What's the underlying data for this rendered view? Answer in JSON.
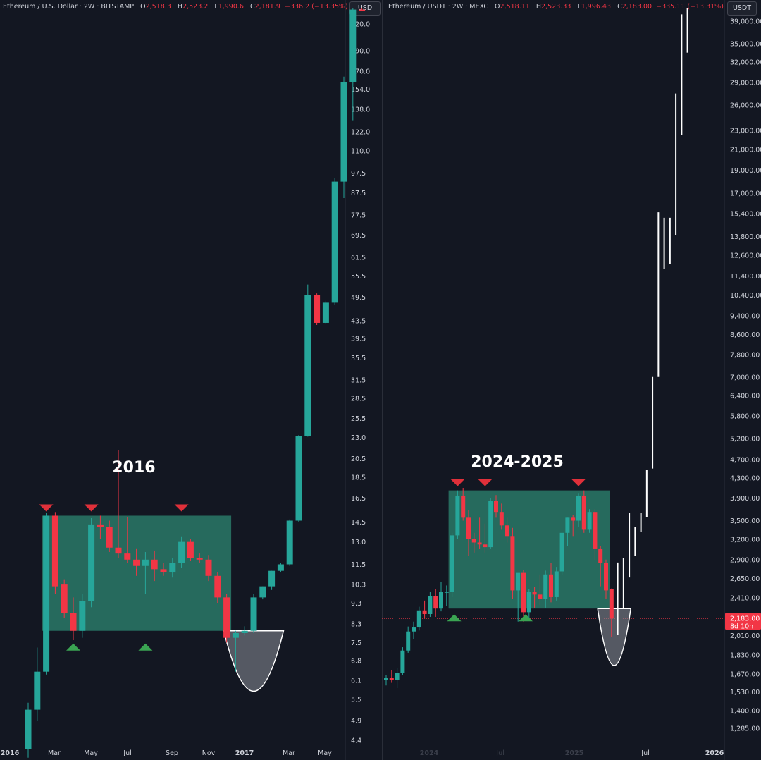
{
  "charts": [
    {
      "header": {
        "symbol": "Ethereum / U.S. Dollar · 2W · BITSTAMP",
        "o_label": "O",
        "open": "2,518.3",
        "h_label": "H",
        "high": "2,523.2",
        "l_label": "L",
        "low": "1,990.6",
        "c_label": "C",
        "close": "2,181.9",
        "change": "−336.2 (−13.35%)"
      },
      "currency": "USD",
      "annotation": "2016",
      "price_ticks": [
        "220.0",
        "190.0",
        "170.0",
        "154.0",
        "138.0",
        "122.0",
        "110.0",
        "97.5",
        "87.5",
        "77.5",
        "69.5",
        "61.5",
        "55.5",
        "49.5",
        "43.5",
        "39.5",
        "35.5",
        "31.5",
        "28.5",
        "25.5",
        "23.0",
        "20.5",
        "18.5",
        "16.5",
        "14.5",
        "13.0",
        "11.5",
        "10.3",
        "9.3",
        "8.3",
        "7.5",
        "6.8",
        "6.1",
        "5.5",
        "4.9",
        "4.4"
      ],
      "time_ticks": [
        "2016",
        "Mar",
        "May",
        "Jul",
        "Sep",
        "Nov",
        "2017",
        "Mar",
        "May"
      ]
    },
    {
      "header": {
        "symbol": "Ethereum / USDT · 2W · MEXC",
        "o_label": "O",
        "open": "2,518.11",
        "h_label": "H",
        "high": "2,523.33",
        "l_label": "L",
        "low": "1,996.43",
        "c_label": "C",
        "close": "2,183.00",
        "change": "−335.11 (−13.31%)"
      },
      "currency": "USDT",
      "annotation": "2024-2025",
      "price_ticks": [
        "39,000.00",
        "35,000.00",
        "32,000.00",
        "29,000.00",
        "26,000.00",
        "23,000.00",
        "21,000.00",
        "19,000.00",
        "17,000.00",
        "15,400.00",
        "13,800.00",
        "12,600.00",
        "11,400.00",
        "10,400.00",
        "9,400.00",
        "8,600.00",
        "7,800.00",
        "7,000.00",
        "6,400.00",
        "5,800.00",
        "5,200.00",
        "4,700.00",
        "4,300.00",
        "3,900.00",
        "3,500.00",
        "3,200.00",
        "2,900.00",
        "2,650.00",
        "2,410.00",
        "2,010.00",
        "1,830.00",
        "1,670.00",
        "1,530.00",
        "1,400.00",
        "1,285.00"
      ],
      "last_price": "2,183.00",
      "countdown": "8d 10h",
      "time_ticks": [
        "2024",
        "Jul",
        "2025",
        "Jul",
        "2026"
      ]
    }
  ],
  "colors": {
    "background": "#131722",
    "bull": "#26a69a",
    "bear": "#f23645",
    "range_box": "#2e8b75",
    "arrow_top": "#e0303a",
    "arrow_bottom": "#3aa452",
    "projection": "#ffffff",
    "cup": "#8c8f99"
  },
  "chart_data": [
    {
      "type": "candlestick",
      "title": "Ethereum / U.S. Dollar · 2W · BITSTAMP",
      "scale": "log",
      "interval": "2W",
      "ylim": [
        4.25,
        236
      ],
      "yticks": [
        220,
        190,
        170,
        154,
        138,
        122,
        110,
        97.5,
        87.5,
        77.5,
        69.5,
        61.5,
        55.5,
        49.5,
        43.5,
        39.5,
        35.5,
        31.5,
        28.5,
        25.5,
        23,
        20.5,
        18.5,
        16.5,
        14.5,
        13,
        11.5,
        10.3,
        9.3,
        8.3,
        7.5,
        6.8,
        6.1,
        5.5,
        4.9,
        4.4
      ],
      "xticks": [
        "2016",
        "Mar",
        "May",
        "Jul",
        "Sep",
        "Nov",
        "2017",
        "Mar",
        "May"
      ],
      "candles": [
        {
          "o": 4.2,
          "h": 5.4,
          "l": 4.0,
          "c": 5.2
        },
        {
          "o": 5.2,
          "h": 7.3,
          "l": 4.9,
          "c": 6.4
        },
        {
          "o": 6.4,
          "h": 15.2,
          "l": 6.3,
          "c": 15.0
        },
        {
          "o": 15.0,
          "h": 15.3,
          "l": 9.8,
          "c": 10.2
        },
        {
          "o": 10.3,
          "h": 10.6,
          "l": 8.6,
          "c": 8.8
        },
        {
          "o": 8.8,
          "h": 9.6,
          "l": 7.6,
          "c": 8.0
        },
        {
          "o": 8.0,
          "h": 9.8,
          "l": 7.7,
          "c": 9.4
        },
        {
          "o": 9.4,
          "h": 14.8,
          "l": 9.1,
          "c": 14.3
        },
        {
          "o": 14.3,
          "h": 15.0,
          "l": 13.2,
          "c": 14.1
        },
        {
          "o": 14.1,
          "h": 14.6,
          "l": 12.3,
          "c": 12.6
        },
        {
          "o": 12.6,
          "h": 21.5,
          "l": 11.9,
          "c": 12.2
        },
        {
          "o": 12.2,
          "h": 14.9,
          "l": 11.6,
          "c": 11.8
        },
        {
          "o": 11.8,
          "h": 12.5,
          "l": 10.8,
          "c": 11.4
        },
        {
          "o": 11.4,
          "h": 12.3,
          "l": 9.8,
          "c": 11.8
        },
        {
          "o": 11.8,
          "h": 12.4,
          "l": 10.5,
          "c": 11.2
        },
        {
          "o": 11.2,
          "h": 11.6,
          "l": 10.8,
          "c": 11.0
        },
        {
          "o": 11.0,
          "h": 11.9,
          "l": 10.7,
          "c": 11.6
        },
        {
          "o": 11.6,
          "h": 13.4,
          "l": 11.3,
          "c": 13.0
        },
        {
          "o": 13.0,
          "h": 13.2,
          "l": 11.7,
          "c": 11.9
        },
        {
          "o": 11.9,
          "h": 12.2,
          "l": 11.6,
          "c": 11.8
        },
        {
          "o": 11.8,
          "h": 12.1,
          "l": 10.5,
          "c": 10.8
        },
        {
          "o": 10.8,
          "h": 11.0,
          "l": 9.3,
          "c": 9.6
        },
        {
          "o": 9.6,
          "h": 9.8,
          "l": 7.5,
          "c": 7.7
        },
        {
          "o": 7.7,
          "h": 8.0,
          "l": 6.4,
          "c": 7.9
        },
        {
          "o": 7.9,
          "h": 8.2,
          "l": 7.8,
          "c": 8.0
        },
        {
          "o": 8.0,
          "h": 9.8,
          "l": 7.9,
          "c": 9.6
        },
        {
          "o": 9.6,
          "h": 10.2,
          "l": 9.5,
          "c": 10.2
        },
        {
          "o": 10.2,
          "h": 11.1,
          "l": 10.0,
          "c": 11.1
        },
        {
          "o": 11.1,
          "h": 11.6,
          "l": 11.0,
          "c": 11.5
        },
        {
          "o": 11.5,
          "h": 14.7,
          "l": 11.4,
          "c": 14.6
        },
        {
          "o": 14.6,
          "h": 23.3,
          "l": 14.5,
          "c": 23.2
        },
        {
          "o": 23.2,
          "h": 53.0,
          "l": 23.1,
          "c": 50.0
        },
        {
          "o": 50.0,
          "h": 50.5,
          "l": 42.5,
          "c": 43.0
        },
        {
          "o": 43.0,
          "h": 48.5,
          "l": 42.8,
          "c": 48.0
        },
        {
          "o": 48.0,
          "h": 95.0,
          "l": 47.5,
          "c": 93.0
        },
        {
          "o": 93.0,
          "h": 165.0,
          "l": 85.0,
          "c": 160.0
        },
        {
          "o": 160.0,
          "h": 240.0,
          "l": 130.0,
          "c": 238.0
        },
        {
          "o": 238.0,
          "h": 240.0,
          "l": 236.0,
          "c": 236.0
        }
      ],
      "range_box": {
        "from_index": 2,
        "to_index": 22,
        "top": 15.0,
        "bottom": 8.0
      },
      "markers_top_index": [
        2,
        7,
        17
      ],
      "markers_bottom_index": [
        5,
        13
      ],
      "cup": {
        "from_index": 22,
        "to_index": 28,
        "bottom": 5.75
      },
      "annotation": "2016"
    },
    {
      "type": "candlestick",
      "title": "Ethereum / USDT · 2W · MEXC",
      "scale": "log",
      "interval": "2W",
      "ylim": [
        1230,
        41500
      ],
      "yticks": [
        39000,
        35000,
        32000,
        29000,
        26000,
        23000,
        21000,
        19000,
        17000,
        15400,
        13800,
        12600,
        11400,
        10400,
        9400,
        8600,
        7800,
        7000,
        6400,
        5800,
        5200,
        4700,
        4300,
        3900,
        3500,
        3200,
        2900,
        2650,
        2410,
        2010,
        1830,
        1670,
        1530,
        1400,
        1285
      ],
      "xticks": [
        "2024",
        "Jul",
        "2025",
        "Jul",
        "2026"
      ],
      "last_price": 2183.0,
      "candles": [
        {
          "o": 1620,
          "h": 1660,
          "l": 1580,
          "c": 1640
        },
        {
          "o": 1640,
          "h": 1700,
          "l": 1600,
          "c": 1620
        },
        {
          "o": 1620,
          "h": 1720,
          "l": 1560,
          "c": 1680
        },
        {
          "o": 1680,
          "h": 1900,
          "l": 1660,
          "c": 1870
        },
        {
          "o": 1870,
          "h": 2100,
          "l": 1850,
          "c": 2050
        },
        {
          "o": 2050,
          "h": 2150,
          "l": 1980,
          "c": 2090
        },
        {
          "o": 2090,
          "h": 2310,
          "l": 2060,
          "c": 2270
        },
        {
          "o": 2270,
          "h": 2380,
          "l": 2180,
          "c": 2230
        },
        {
          "o": 2230,
          "h": 2480,
          "l": 2200,
          "c": 2430
        },
        {
          "o": 2430,
          "h": 2520,
          "l": 2200,
          "c": 2290
        },
        {
          "o": 2290,
          "h": 2600,
          "l": 2260,
          "c": 2480
        },
        {
          "o": 2480,
          "h": 2560,
          "l": 2320,
          "c": 2480
        },
        {
          "o": 2480,
          "h": 3300,
          "l": 2420,
          "c": 3260
        },
        {
          "o": 3260,
          "h": 4050,
          "l": 3200,
          "c": 3950
        },
        {
          "o": 3950,
          "h": 4100,
          "l": 3500,
          "c": 3550
        },
        {
          "o": 3550,
          "h": 3680,
          "l": 2950,
          "c": 3200
        },
        {
          "o": 3200,
          "h": 3300,
          "l": 3000,
          "c": 3150
        },
        {
          "o": 3150,
          "h": 3550,
          "l": 3050,
          "c": 3120
        },
        {
          "o": 3120,
          "h": 3450,
          "l": 3000,
          "c": 3080
        },
        {
          "o": 3080,
          "h": 3900,
          "l": 3050,
          "c": 3850
        },
        {
          "o": 3850,
          "h": 3960,
          "l": 3550,
          "c": 3650
        },
        {
          "o": 3650,
          "h": 3800,
          "l": 3350,
          "c": 3420
        },
        {
          "o": 3420,
          "h": 3550,
          "l": 3150,
          "c": 3250
        },
        {
          "o": 3250,
          "h": 3380,
          "l": 2400,
          "c": 2500
        },
        {
          "o": 2500,
          "h": 2700,
          "l": 2150,
          "c": 2720
        },
        {
          "o": 2720,
          "h": 2760,
          "l": 2150,
          "c": 2250
        },
        {
          "o": 2250,
          "h": 2520,
          "l": 2180,
          "c": 2480
        },
        {
          "o": 2480,
          "h": 2540,
          "l": 2300,
          "c": 2450
        },
        {
          "o": 2450,
          "h": 2700,
          "l": 2330,
          "c": 2400
        },
        {
          "o": 2400,
          "h": 2750,
          "l": 2300,
          "c": 2700
        },
        {
          "o": 2700,
          "h": 2850,
          "l": 2360,
          "c": 2420
        },
        {
          "o": 2420,
          "h": 2800,
          "l": 2380,
          "c": 2740
        },
        {
          "o": 2740,
          "h": 3300,
          "l": 2700,
          "c": 3300
        },
        {
          "o": 3300,
          "h": 3550,
          "l": 3100,
          "c": 3550
        },
        {
          "o": 3550,
          "h": 3600,
          "l": 3250,
          "c": 3500
        },
        {
          "o": 3500,
          "h": 4000,
          "l": 3400,
          "c": 3950
        },
        {
          "o": 3950,
          "h": 4050,
          "l": 3300,
          "c": 3350
        },
        {
          "o": 3350,
          "h": 3700,
          "l": 3300,
          "c": 3650
        },
        {
          "o": 3650,
          "h": 3700,
          "l": 2900,
          "c": 3050
        },
        {
          "o": 3050,
          "h": 3100,
          "l": 2550,
          "c": 2850
        },
        {
          "o": 2850,
          "h": 2900,
          "l": 2400,
          "c": 2500
        },
        {
          "o": 2518,
          "h": 2523,
          "l": 1996,
          "c": 2183
        }
      ],
      "projection": [
        {
          "lo": 2020,
          "hi": 2860
        },
        {
          "lo": 2290,
          "hi": 2920
        },
        {
          "lo": 2660,
          "hi": 3640
        },
        {
          "lo": 2950,
          "hi": 3400
        },
        {
          "lo": 3320,
          "hi": 3640
        },
        {
          "lo": 3560,
          "hi": 4480
        },
        {
          "lo": 4500,
          "hi": 7000
        },
        {
          "lo": 7000,
          "hi": 15500
        },
        {
          "lo": 11800,
          "hi": 15100
        },
        {
          "lo": 12100,
          "hi": 15100
        },
        {
          "lo": 13900,
          "hi": 27500
        },
        {
          "lo": 22500,
          "hi": 40300
        },
        {
          "lo": 33500,
          "hi": 41500
        }
      ],
      "range_box": {
        "from_index": 12,
        "to_index": 40,
        "top": 4050,
        "bottom": 2290
      },
      "markers_top_index": [
        13,
        18,
        35
      ],
      "markers_bottom_index": [
        12,
        25
      ],
      "cup": {
        "from_index": 39,
        "to_index": 44,
        "bottom": 1740
      },
      "annotation": "2024-2025"
    }
  ]
}
